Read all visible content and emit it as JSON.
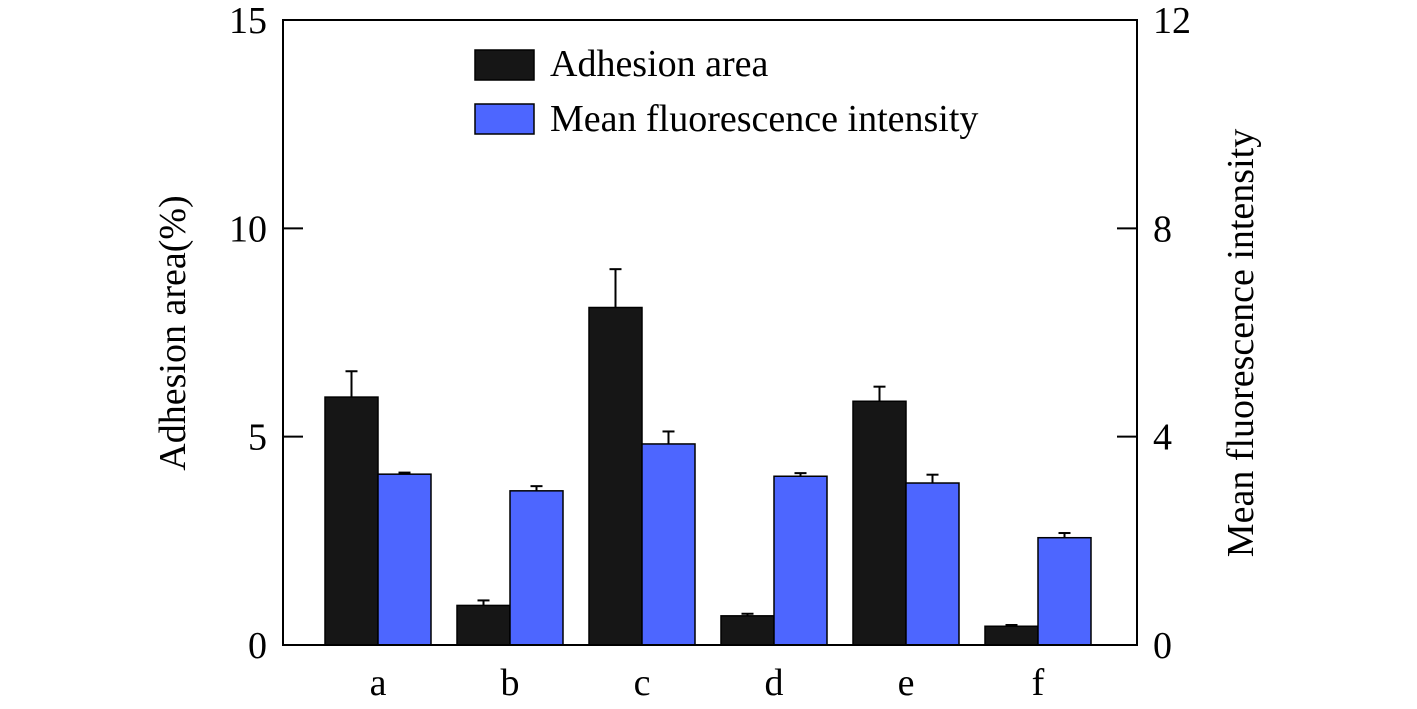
{
  "chart_data": {
    "type": "bar",
    "categories": [
      "a",
      "b",
      "c",
      "d",
      "e",
      "f"
    ],
    "series": [
      {
        "name": "Adhesion area",
        "axis": "left",
        "color": "#161616",
        "values": [
          5.95,
          0.95,
          8.1,
          0.7,
          5.85,
          0.45
        ],
        "errors": [
          0.62,
          0.12,
          0.92,
          0.05,
          0.35,
          0.03
        ]
      },
      {
        "name": "Mean fluorescence intensity",
        "axis": "right",
        "color": "#4d66ff",
        "values": [
          3.28,
          2.96,
          3.86,
          3.24,
          3.11,
          2.06
        ],
        "errors": [
          0.03,
          0.09,
          0.24,
          0.06,
          0.16,
          0.09
        ]
      }
    ],
    "ylabel": "Adhesion area(%)",
    "ylim": [
      0,
      15
    ],
    "yticks": [
      "0",
      "5",
      "10",
      "15"
    ],
    "y2label": "Mean fluorescence intensity",
    "y2lim": [
      0,
      12
    ],
    "y2ticks": [
      "0",
      "4",
      "8",
      "12"
    ],
    "xlabel": "",
    "legend_position": "top-center",
    "grid": false
  }
}
